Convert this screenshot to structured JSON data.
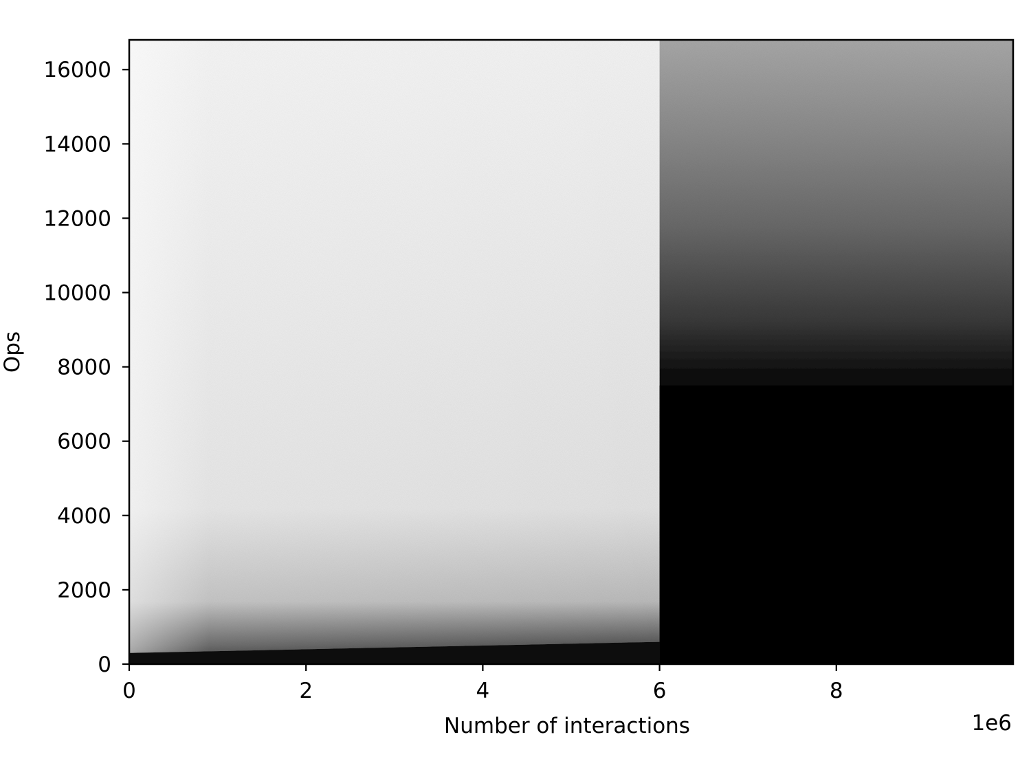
{
  "chart_data": {
    "type": "heatmap",
    "title": "",
    "xlabel": "Number of interactions",
    "ylabel": "Ops",
    "x_offset_label": "1e6",
    "xlim": [
      0,
      10000000
    ],
    "ylim": [
      0,
      16800
    ],
    "x_ticks": [
      0,
      2000000,
      4000000,
      6000000,
      8000000
    ],
    "x_tick_labels": [
      "0",
      "2",
      "4",
      "6",
      "8"
    ],
    "y_ticks": [
      0,
      2000,
      4000,
      6000,
      8000,
      10000,
      12000,
      14000,
      16000
    ],
    "y_tick_labels": [
      "0",
      "2000",
      "4000",
      "6000",
      "8000",
      "10000",
      "12000",
      "14000",
      "16000"
    ],
    "grid": false,
    "colormap": "grayscale (white = low density, black = high density)",
    "regions": [
      {
        "x_range": [
          0,
          6000000
        ],
        "description": "low density; dense band near 0 rising from ~300 to ~600 Ops",
        "dense_band_top": [
          300,
          600
        ]
      },
      {
        "x_range": [
          6000000,
          10000000
        ],
        "description": "high density; solid dark below ~7500 Ops, grey above",
        "dense_band_top": [
          7500,
          7500
        ]
      }
    ],
    "transition_x": 6000000
  }
}
